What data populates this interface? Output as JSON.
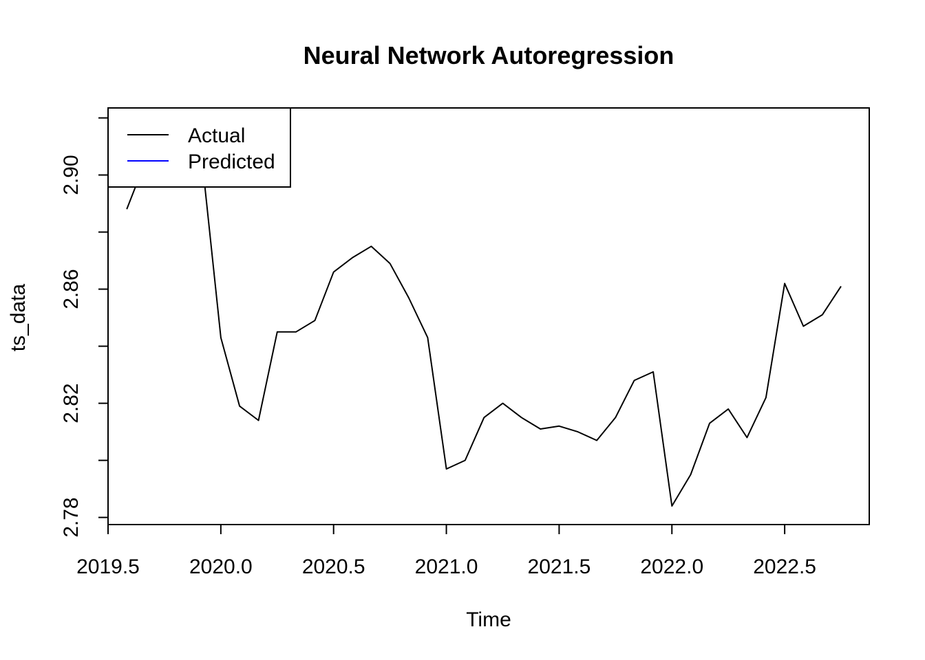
{
  "chart_data": {
    "type": "line",
    "title": "Neural Network Autoregression",
    "xlabel": "Time",
    "ylabel": "ts_data",
    "xlim": [
      2019.5,
      2022.875
    ],
    "ylim": [
      2.7775,
      2.9235
    ],
    "x_ticks": [
      2019.5,
      2020.0,
      2020.5,
      2021.0,
      2021.5,
      2022.0,
      2022.5
    ],
    "x_tick_labels": [
      "2019.5",
      "2020.0",
      "2020.5",
      "2021.0",
      "2021.5",
      "2022.0",
      "2022.5"
    ],
    "y_ticks": [
      2.78,
      2.8,
      2.82,
      2.84,
      2.86,
      2.88,
      2.9,
      2.92
    ],
    "y_tick_labels": [
      "2.78",
      "",
      "2.82",
      "",
      "2.86",
      "",
      "2.90",
      ""
    ],
    "legend": {
      "position": "top-left",
      "entries": [
        {
          "label": "Actual",
          "color": "#000000"
        },
        {
          "label": "Predicted",
          "color": "#0000ff"
        }
      ]
    },
    "series": [
      {
        "name": "Actual",
        "color": "#000000",
        "x": [
          2019.583,
          2019.667,
          2019.75,
          2019.833,
          2019.917,
          2020.0,
          2020.083,
          2020.167,
          2020.25,
          2020.333,
          2020.417,
          2020.5,
          2020.583,
          2020.667,
          2020.75,
          2020.833,
          2020.917,
          2021.0,
          2021.083,
          2021.167,
          2021.25,
          2021.333,
          2021.417,
          2021.5,
          2021.583,
          2021.667,
          2021.75,
          2021.833,
          2021.917,
          2022.0,
          2022.083,
          2022.167,
          2022.25,
          2022.333,
          2022.417,
          2022.5,
          2022.583,
          2022.667,
          2022.75
        ],
        "y": [
          2.888,
          2.905,
          2.915,
          2.918,
          2.905,
          2.843,
          2.819,
          2.814,
          2.845,
          2.845,
          2.849,
          2.866,
          2.871,
          2.875,
          2.869,
          2.857,
          2.843,
          2.797,
          2.8,
          2.815,
          2.82,
          2.815,
          2.811,
          2.812,
          2.81,
          2.807,
          2.815,
          2.828,
          2.831,
          2.784,
          2.795,
          2.813,
          2.818,
          2.808,
          2.822,
          2.862,
          2.847,
          2.851,
          2.861
        ]
      },
      {
        "name": "Predicted",
        "color": "#0000ff",
        "x": [],
        "y": []
      }
    ]
  }
}
